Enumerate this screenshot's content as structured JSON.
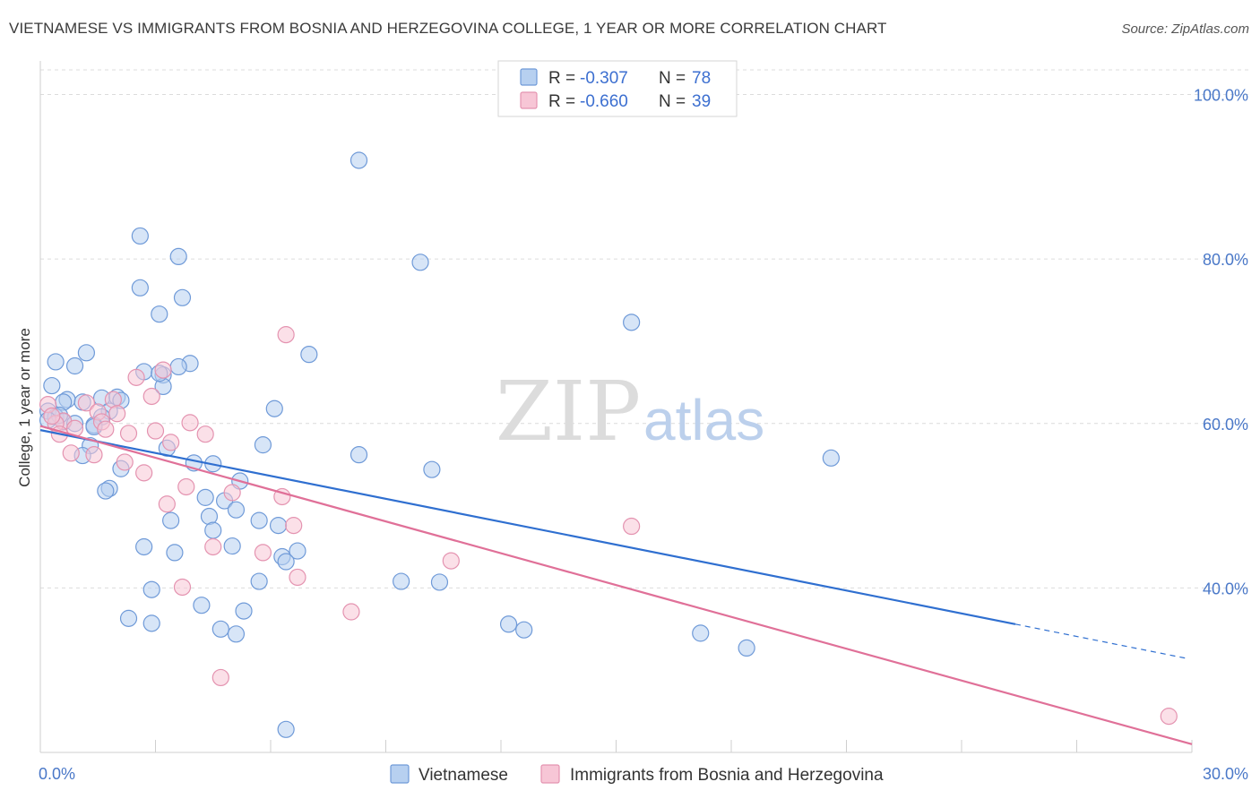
{
  "title": "VIETNAMESE VS IMMIGRANTS FROM BOSNIA AND HERZEGOVINA COLLEGE, 1 YEAR OR MORE CORRELATION CHART",
  "source": "Source: ZipAtlas.com",
  "watermark": {
    "zip": "ZIP",
    "atlas": "atlas"
  },
  "legend_box": {
    "rows": [
      {
        "r_label": "R =",
        "r_value": "-0.307",
        "n_label": "N =",
        "n_value": "78"
      },
      {
        "r_label": "R =",
        "r_value": "-0.660",
        "n_label": "N =",
        "n_value": "39"
      }
    ]
  },
  "colors": {
    "vietnamese_fill": "#b7d0f0",
    "vietnamese_stroke": "#6f9ad8",
    "vietnamese_line": "#2f6fd0",
    "bosnia_fill": "#f7c6d6",
    "bosnia_stroke": "#e493b0",
    "bosnia_line": "#e07098",
    "tick_text": "#4a78c8",
    "grid": "#dcdcdc"
  },
  "chart_data": {
    "type": "scatter",
    "title": "VIETNAMESE VS IMMIGRANTS FROM BOSNIA AND HERZEGOVINA COLLEGE, 1 YEAR OR MORE CORRELATION CHART",
    "xlabel": "",
    "ylabel": "College, 1 year or more",
    "xlim": [
      0,
      30
    ],
    "ylim": [
      20,
      103
    ],
    "x_tick_labels": [
      "0.0%",
      "30.0%"
    ],
    "y_ticks": [
      40,
      60,
      80,
      100
    ],
    "y_tick_labels": [
      "40.0%",
      "60.0%",
      "80.0%",
      "100.0%"
    ],
    "grid": true,
    "legend_position": "bottom",
    "series": [
      {
        "name": "Vietnamese",
        "r": -0.307,
        "n": 78,
        "trend": {
          "x": [
            0,
            25.4
          ],
          "y": [
            59.2,
            35.6
          ],
          "dashed_x": [
            25.4,
            29.9
          ],
          "dashed_y": [
            35.6,
            31.4
          ]
        },
        "points": [
          [
            8.3,
            92.0
          ],
          [
            2.6,
            82.8
          ],
          [
            3.6,
            80.3
          ],
          [
            9.9,
            79.6
          ],
          [
            2.6,
            76.5
          ],
          [
            3.7,
            75.3
          ],
          [
            3.1,
            73.3
          ],
          [
            15.4,
            72.3
          ],
          [
            1.2,
            68.6
          ],
          [
            7.0,
            68.4
          ],
          [
            0.4,
            67.5
          ],
          [
            3.9,
            67.3
          ],
          [
            0.9,
            67.0
          ],
          [
            3.6,
            66.9
          ],
          [
            2.7,
            66.3
          ],
          [
            3.2,
            65.9
          ],
          [
            3.2,
            64.5
          ],
          [
            0.3,
            64.6
          ],
          [
            1.6,
            63.1
          ],
          [
            2.0,
            63.2
          ],
          [
            0.7,
            62.9
          ],
          [
            2.1,
            62.8
          ],
          [
            1.1,
            62.6
          ],
          [
            0.6,
            62.6
          ],
          [
            6.1,
            61.8
          ],
          [
            1.8,
            61.5
          ],
          [
            0.2,
            61.5
          ],
          [
            0.4,
            60.8
          ],
          [
            1.6,
            60.8
          ],
          [
            0.6,
            60.2
          ],
          [
            0.9,
            60.0
          ],
          [
            1.4,
            59.8
          ],
          [
            1.4,
            59.6
          ],
          [
            3.3,
            57.0
          ],
          [
            5.8,
            57.4
          ],
          [
            1.3,
            57.3
          ],
          [
            1.1,
            56.1
          ],
          [
            8.3,
            56.2
          ],
          [
            20.6,
            55.8
          ],
          [
            4.0,
            55.2
          ],
          [
            4.5,
            55.1
          ],
          [
            2.1,
            54.5
          ],
          [
            10.2,
            54.4
          ],
          [
            5.2,
            53.0
          ],
          [
            1.8,
            52.1
          ],
          [
            1.7,
            51.8
          ],
          [
            4.3,
            51.0
          ],
          [
            4.8,
            50.6
          ],
          [
            5.1,
            49.5
          ],
          [
            4.4,
            48.7
          ],
          [
            3.4,
            48.2
          ],
          [
            5.7,
            48.2
          ],
          [
            6.2,
            47.6
          ],
          [
            4.5,
            47.0
          ],
          [
            2.7,
            45.0
          ],
          [
            5.0,
            45.1
          ],
          [
            3.5,
            44.3
          ],
          [
            6.7,
            44.5
          ],
          [
            6.3,
            43.8
          ],
          [
            6.4,
            43.2
          ],
          [
            5.7,
            40.8
          ],
          [
            9.4,
            40.8
          ],
          [
            10.4,
            40.7
          ],
          [
            2.9,
            39.8
          ],
          [
            4.2,
            37.9
          ],
          [
            5.3,
            37.2
          ],
          [
            2.3,
            36.3
          ],
          [
            2.9,
            35.7
          ],
          [
            12.2,
            35.6
          ],
          [
            12.6,
            34.9
          ],
          [
            4.7,
            35.0
          ],
          [
            5.1,
            34.4
          ],
          [
            17.2,
            34.5
          ],
          [
            18.4,
            32.7
          ],
          [
            6.4,
            22.8
          ],
          [
            0.5,
            61.0
          ],
          [
            0.2,
            60.4
          ],
          [
            3.1,
            66.1
          ]
        ]
      },
      {
        "name": "Immigrants from Bosnia and Herzegovina",
        "r": -0.66,
        "n": 39,
        "trend": {
          "x": [
            0,
            30
          ],
          "y": [
            59.7,
            21.0
          ]
        },
        "points": [
          [
            6.4,
            70.8
          ],
          [
            3.2,
            66.5
          ],
          [
            2.5,
            65.6
          ],
          [
            2.9,
            63.3
          ],
          [
            1.9,
            62.9
          ],
          [
            0.2,
            62.3
          ],
          [
            1.2,
            62.5
          ],
          [
            2.0,
            61.2
          ],
          [
            1.5,
            61.4
          ],
          [
            0.6,
            60.3
          ],
          [
            1.6,
            60.2
          ],
          [
            0.4,
            60.0
          ],
          [
            3.9,
            60.1
          ],
          [
            0.9,
            59.4
          ],
          [
            1.7,
            59.3
          ],
          [
            3.0,
            59.1
          ],
          [
            2.3,
            58.8
          ],
          [
            4.3,
            58.7
          ],
          [
            0.5,
            58.7
          ],
          [
            3.4,
            57.7
          ],
          [
            0.8,
            56.4
          ],
          [
            1.4,
            56.2
          ],
          [
            2.2,
            55.3
          ],
          [
            2.7,
            54.0
          ],
          [
            3.8,
            52.3
          ],
          [
            5.0,
            51.6
          ],
          [
            6.3,
            51.1
          ],
          [
            3.3,
            50.2
          ],
          [
            6.6,
            47.6
          ],
          [
            15.4,
            47.5
          ],
          [
            4.5,
            45.0
          ],
          [
            5.8,
            44.3
          ],
          [
            10.7,
            43.3
          ],
          [
            6.7,
            41.3
          ],
          [
            3.7,
            40.1
          ],
          [
            8.1,
            37.1
          ],
          [
            4.7,
            29.1
          ],
          [
            29.4,
            24.4
          ],
          [
            0.3,
            60.9
          ]
        ]
      }
    ]
  },
  "bottom_legend": [
    {
      "label": "Vietnamese"
    },
    {
      "label": "Immigrants from Bosnia and Herzegovina"
    }
  ]
}
